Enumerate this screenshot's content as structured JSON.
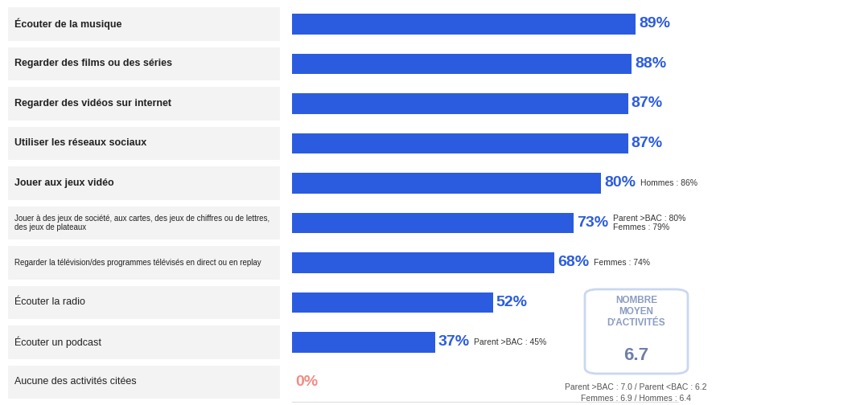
{
  "chart_data": {
    "type": "bar",
    "orientation": "horizontal",
    "categories": [
      "Écouter de la musique",
      "Regarder des films ou des séries",
      "Regarder des vidéos sur internet",
      "Utiliser les réseaux sociaux",
      "Jouer aux jeux vidéo",
      "Jouer à des jeux de société, aux cartes, des jeux de chiffres ou de lettres, des jeux de plateaux",
      "Regarder la télévision/des programmes télévisés en direct ou en replay",
      "Écouter la radio",
      "Écouter un podcast",
      "Aucune des activités citées"
    ],
    "values": [
      89,
      88,
      87,
      87,
      80,
      73,
      68,
      52,
      37,
      0
    ],
    "value_labels": [
      "89%",
      "88%",
      "87%",
      "87%",
      "80%",
      "73%",
      "68%",
      "52%",
      "37%",
      "0%"
    ],
    "data_labels": true,
    "colors": [
      "#2b5ce0",
      "#2b5ce0",
      "#2b5ce0",
      "#2b5ce0",
      "#2b5ce0",
      "#2b5ce0",
      "#2b5ce0",
      "#2b5ce0",
      "#2b5ce0",
      "#f28b82"
    ],
    "xlim": [
      0,
      100
    ],
    "tick_labels": "y",
    "grid": false,
    "annotations": [
      null,
      null,
      null,
      null,
      [
        "Hommes : 86%"
      ],
      [
        "Parent >BAC : 80%",
        "Femmes : 79%"
      ],
      [
        "Femmes : 74%"
      ],
      null,
      [
        "Parent >BAC : 45%"
      ],
      null
    ],
    "summary_box": {
      "title": "NOMBRE MOYEN D'ACTIVITÉS",
      "value": 6.7
    },
    "footnotes": [
      "Parent >BAC : 7.0 / Parent <BAC : 6.2",
      "Femmes : 6.9 / Hommes : 6.4"
    ]
  }
}
